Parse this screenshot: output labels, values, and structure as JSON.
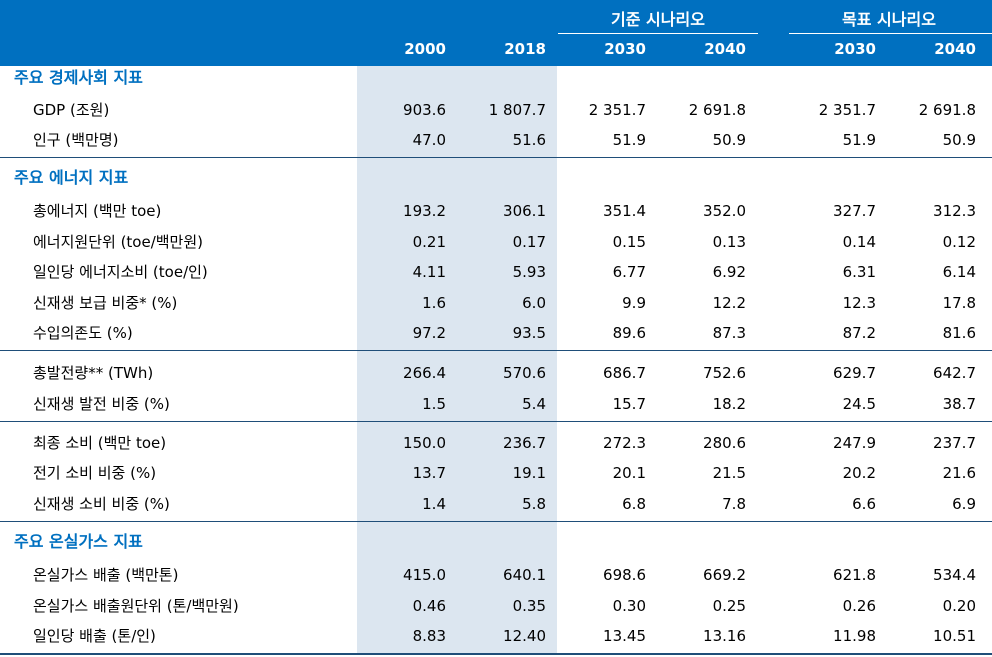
{
  "header": {
    "scenarios": [
      "기준 시나리오",
      "목표 시나리오"
    ],
    "years": [
      "2000",
      "2018",
      "2030",
      "2040",
      "2030",
      "2040"
    ]
  },
  "sections": [
    {
      "title": "주요 경제사회 지표",
      "rows": [
        {
          "label": "GDP (조원)",
          "values": [
            "903.6",
            "1 807.7",
            "2 351.7",
            "2 691.8",
            "2 351.7",
            "2 691.8"
          ]
        },
        {
          "label": "인구 (백만명)",
          "values": [
            "47.0",
            "51.6",
            "51.9",
            "50.9",
            "51.9",
            "50.9"
          ]
        }
      ]
    },
    {
      "title": "주요 에너지 지표",
      "rows": [
        {
          "label": "총에너지 (백만 toe)",
          "values": [
            "193.2",
            "306.1",
            "351.4",
            "352.0",
            "327.7",
            "312.3"
          ]
        },
        {
          "label": "에너지원단위 (toe/백만원)",
          "values": [
            "0.21",
            "0.17",
            "0.15",
            "0.13",
            "0.14",
            "0.12"
          ]
        },
        {
          "label": "일인당 에너지소비 (toe/인)",
          "values": [
            "4.11",
            "5.93",
            "6.77",
            "6.92",
            "6.31",
            "6.14"
          ]
        },
        {
          "label": "신재생 보급 비중* (%)",
          "values": [
            "1.6",
            "6.0",
            "9.9",
            "12.2",
            "12.3",
            "17.8"
          ]
        },
        {
          "label": "수입의존도 (%)",
          "values": [
            "97.2",
            "93.5",
            "89.6",
            "87.3",
            "87.2",
            "81.6"
          ]
        },
        {
          "label": "총발전량** (TWh)",
          "values": [
            "266.4",
            "570.6",
            "686.7",
            "752.6",
            "629.7",
            "642.7"
          ]
        },
        {
          "label": "신재생 발전 비중 (%)",
          "values": [
            "1.5",
            "5.4",
            "15.7",
            "18.2",
            "24.5",
            "38.7"
          ]
        },
        {
          "label": "최종 소비 (백만 toe)",
          "values": [
            "150.0",
            "236.7",
            "272.3",
            "280.6",
            "247.9",
            "237.7"
          ]
        },
        {
          "label": "전기 소비 비중 (%)",
          "values": [
            "13.7",
            "19.1",
            "20.1",
            "21.5",
            "20.2",
            "21.6"
          ]
        },
        {
          "label": "신재생 소비 비중 (%)",
          "values": [
            "1.4",
            "5.8",
            "6.8",
            "7.8",
            "6.6",
            "6.9"
          ]
        }
      ]
    },
    {
      "title": "주요 온실가스 지표",
      "rows": [
        {
          "label": "온실가스 배출 (백만톤)",
          "values": [
            "415.0",
            "640.1",
            "698.6",
            "669.2",
            "621.8",
            "534.4"
          ]
        },
        {
          "label": "온실가스 배출원단위 (톤/백만원)",
          "values": [
            "0.46",
            "0.35",
            "0.30",
            "0.25",
            "0.26",
            "0.20"
          ]
        },
        {
          "label": "일인당 배출 (톤/인)",
          "values": [
            "8.83",
            "12.40",
            "13.45",
            "13.16",
            "11.98",
            "10.51"
          ]
        }
      ]
    }
  ]
}
